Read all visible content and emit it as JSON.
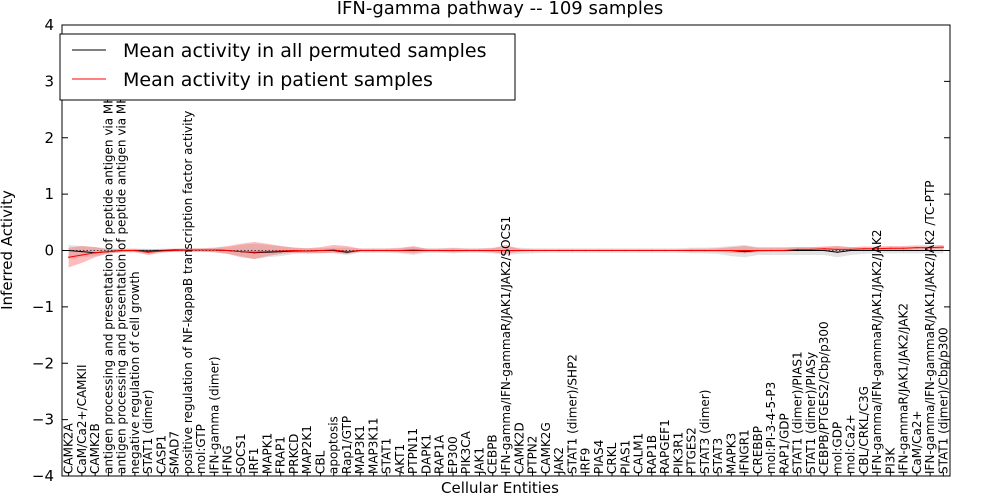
{
  "chart_data": {
    "type": "line",
    "title": "IFN-gamma pathway -- 109 samples",
    "xlabel": "Cellular Entities",
    "ylabel": "Inferred Activity",
    "ylim": [
      -4,
      4
    ],
    "yticks": [
      -4,
      -3,
      -2,
      -1,
      0,
      1,
      2,
      3,
      4
    ],
    "legend_position": "top-left",
    "categories": [
      "CAMK2A",
      "CaM/Ca2+/CAMKII",
      "CAMK2B",
      "antigen processing and presentation of peptide antigen via MHC class I",
      "antigen processing and presentation of peptide antigen via MHC class II",
      "negative regulation of cell growth",
      "STAT1 (dimer)",
      "CASP1",
      "SMAD7",
      "positive regulation of NF-kappaB transcription factor activity",
      "mol:GTP",
      "IFN-gamma (dimer)",
      "IFNG",
      "SOCS1",
      "IRF1",
      "MAPK1",
      "FRAP1",
      "PRKCD",
      "MAP2K1",
      "CBL",
      "apoptosis",
      "Rap1/GTP",
      "MAP3K1",
      "MAP3K11",
      "STAT1",
      "AKT1",
      "PTPN11",
      "DAPK1",
      "RAP1A",
      "EP300",
      "PIK3CA",
      "JAK1",
      "CEBPB",
      "IFN-gamma/IFN-gammaR/JAK1/JAK2/SOCS1",
      "CAMK2D",
      "PTPN2",
      "CAMK2G",
      "JAK2",
      "STAT1 (dimer)/SHP2",
      "IRF9",
      "PIAS4",
      "CRKL",
      "PIAS1",
      "CALM1",
      "RAP1B",
      "RAPGEF1",
      "PIK3R1",
      "PTGES2",
      "STAT3 (dimer)",
      "STAT3",
      "MAPK3",
      "IFNGR1",
      "CREBBP",
      "mol:PI-3-4-5-P3",
      "RAP1/GDP",
      "STAT1 (dimer)/PIAS1",
      "STAT1 (dimer)/PIASy",
      "CEBPB/PTGES2/Cbp/p300",
      "mol:GDP",
      "mol:Ca2+",
      "CBL/CRKL/C3G",
      "IFN-gamma/IFN-gammaR/JAK1/JAK2/JAK2",
      "PI3K",
      "IFN-gammaR/JAK1/JAK2/JAK2",
      "CaM/Ca2+",
      "IFN-gamma/IFN-gammaR/JAK1/JAK2/JAK2  /TC-PTP",
      "STAT1 (dimer)/Cbp/p300"
    ],
    "series": [
      {
        "name": "Mean activity in all permuted samples",
        "color": "#000000",
        "values": [
          0.0,
          -0.02,
          -0.04,
          -0.02,
          0.0,
          0.0,
          -0.01,
          0.0,
          0.01,
          0.01,
          0.01,
          0.01,
          0.0,
          -0.02,
          -0.04,
          -0.03,
          -0.02,
          -0.01,
          -0.01,
          0.0,
          0.0,
          -0.03,
          0.0,
          0.0,
          0.0,
          0.0,
          0.0,
          0.0,
          0.0,
          0.0,
          0.0,
          0.0,
          0.0,
          0.0,
          0.0,
          0.0,
          0.0,
          0.0,
          0.0,
          0.0,
          0.0,
          0.0,
          0.0,
          0.0,
          0.0,
          0.0,
          0.0,
          0.0,
          0.0,
          0.0,
          0.0,
          -0.02,
          0.0,
          0.0,
          0.0,
          0.0,
          0.0,
          0.0,
          -0.03,
          0.0,
          0.0,
          0.0,
          0.0,
          0.0,
          0.0,
          0.0,
          0.0
        ],
        "lower": [
          -0.15,
          -0.12,
          -0.1,
          -0.06,
          -0.03,
          -0.02,
          -0.05,
          -0.02,
          -0.02,
          -0.02,
          -0.02,
          -0.03,
          -0.06,
          -0.1,
          -0.15,
          -0.12,
          -0.1,
          -0.06,
          -0.05,
          -0.04,
          -0.05,
          -0.08,
          -0.04,
          -0.04,
          -0.04,
          -0.05,
          -0.08,
          -0.04,
          -0.04,
          -0.05,
          -0.04,
          -0.04,
          -0.05,
          -0.08,
          -0.06,
          -0.05,
          -0.04,
          -0.04,
          -0.04,
          -0.04,
          -0.04,
          -0.04,
          -0.04,
          -0.04,
          -0.04,
          -0.04,
          -0.04,
          -0.05,
          -0.05,
          -0.06,
          -0.1,
          -0.12,
          -0.08,
          -0.08,
          -0.08,
          -0.08,
          -0.08,
          -0.08,
          -0.12,
          -0.08,
          -0.06,
          -0.05,
          -0.05,
          -0.05,
          -0.05,
          -0.05,
          -0.05
        ],
        "upper": [
          0.1,
          0.08,
          0.06,
          0.04,
          0.03,
          0.03,
          0.03,
          0.02,
          0.03,
          0.03,
          0.03,
          0.04,
          0.06,
          0.1,
          0.12,
          0.1,
          0.08,
          0.05,
          0.04,
          0.04,
          0.05,
          0.05,
          0.04,
          0.04,
          0.04,
          0.05,
          0.06,
          0.04,
          0.04,
          0.05,
          0.04,
          0.04,
          0.05,
          0.06,
          0.05,
          0.04,
          0.04,
          0.04,
          0.04,
          0.04,
          0.04,
          0.04,
          0.04,
          0.04,
          0.04,
          0.04,
          0.04,
          0.05,
          0.05,
          0.06,
          0.08,
          0.1,
          0.06,
          0.06,
          0.06,
          0.06,
          0.06,
          0.06,
          0.08,
          0.06,
          0.05,
          0.05,
          0.05,
          0.05,
          0.05,
          0.05,
          0.05
        ]
      },
      {
        "name": "Mean activity in patient samples",
        "color": "#ff0000",
        "values": [
          -0.12,
          -0.08,
          -0.04,
          -0.02,
          0.0,
          0.0,
          -0.03,
          -0.01,
          0.0,
          0.01,
          0.01,
          0.01,
          0.0,
          -0.02,
          -0.03,
          -0.02,
          -0.01,
          0.0,
          -0.01,
          0.0,
          0.01,
          -0.02,
          0.0,
          0.0,
          0.0,
          0.0,
          0.01,
          0.0,
          0.0,
          0.0,
          0.0,
          0.0,
          0.0,
          0.0,
          0.0,
          0.0,
          0.0,
          0.0,
          0.0,
          0.0,
          0.0,
          0.0,
          0.0,
          0.0,
          0.0,
          0.0,
          0.0,
          0.0,
          0.0,
          0.0,
          0.0,
          0.0,
          0.0,
          0.0,
          0.0,
          0.02,
          0.02,
          0.03,
          0.02,
          0.02,
          0.03,
          0.03,
          0.04,
          0.04,
          0.05,
          0.05,
          0.06
        ],
        "lower": [
          -0.3,
          -0.22,
          -0.12,
          -0.05,
          -0.03,
          -0.03,
          -0.08,
          -0.04,
          -0.02,
          -0.02,
          -0.02,
          -0.03,
          -0.06,
          -0.12,
          -0.15,
          -0.1,
          -0.06,
          -0.04,
          -0.05,
          -0.05,
          -0.04,
          -0.06,
          -0.02,
          -0.02,
          -0.02,
          -0.03,
          -0.05,
          -0.02,
          -0.02,
          -0.03,
          -0.02,
          -0.02,
          -0.03,
          -0.06,
          -0.02,
          -0.01,
          -0.01,
          -0.01,
          -0.01,
          -0.01,
          -0.01,
          -0.01,
          -0.01,
          -0.01,
          -0.01,
          -0.01,
          -0.01,
          -0.02,
          -0.02,
          -0.02,
          -0.04,
          -0.05,
          -0.03,
          -0.02,
          -0.02,
          -0.01,
          -0.01,
          0.0,
          -0.02,
          -0.01,
          0.0,
          0.01,
          0.01,
          0.01,
          0.02,
          0.02,
          0.02
        ],
        "upper": [
          0.05,
          0.08,
          0.06,
          0.02,
          0.03,
          0.03,
          0.02,
          0.03,
          0.03,
          0.04,
          0.04,
          0.05,
          0.08,
          0.12,
          0.15,
          0.12,
          0.08,
          0.05,
          0.04,
          0.06,
          0.1,
          0.08,
          0.03,
          0.03,
          0.03,
          0.04,
          0.08,
          0.03,
          0.03,
          0.04,
          0.03,
          0.03,
          0.04,
          0.1,
          0.03,
          0.02,
          0.02,
          0.02,
          0.02,
          0.02,
          0.02,
          0.02,
          0.02,
          0.02,
          0.02,
          0.02,
          0.02,
          0.03,
          0.03,
          0.04,
          0.06,
          0.08,
          0.05,
          0.05,
          0.05,
          0.06,
          0.06,
          0.07,
          0.08,
          0.06,
          0.07,
          0.07,
          0.08,
          0.08,
          0.09,
          0.09,
          0.1
        ]
      }
    ]
  }
}
